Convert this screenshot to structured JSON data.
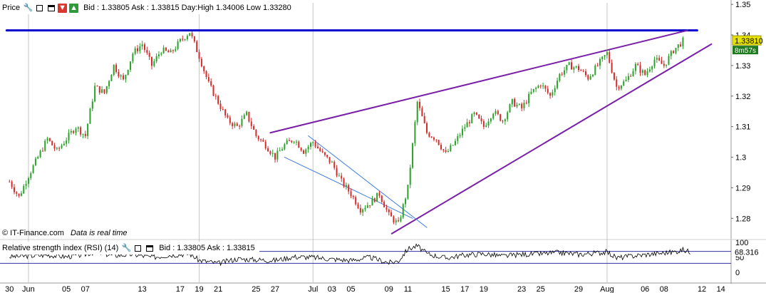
{
  "price_toolbar": {
    "label": "Price",
    "info": "Bid : 1.33805 Ask : 1.33815 Day:High 1.34006 Low 1.33280",
    "icons": [
      "wrench-icon",
      "window-icon",
      "minimize-icon",
      "download-icon",
      "upload-icon"
    ]
  },
  "rsi_toolbar": {
    "label": "Relative strength index (RSI) (14)",
    "info": "Bid : 1.33805 Ask : 1.33815",
    "icons": [
      "wrench-icon",
      "window-icon",
      "minimize-icon"
    ]
  },
  "footer": {
    "copyright": "© IT-Finance.com",
    "realtime_note": "Data is real time"
  },
  "colors": {
    "up_candle": "#2aa22a",
    "down_candle": "#d62a2a",
    "resistance_line": "#0000cc",
    "wedge_lines": "#7a1fa8",
    "channel_lines": "#3a7be0",
    "price_label_bg": "#e8e400",
    "countdown_bg": "#1e7a1e",
    "grid": "#9a9a9a"
  },
  "chart_data": [
    {
      "type": "candlestick",
      "instrument_price_now": 1.3381,
      "price_label": "1.33810",
      "countdown_label": "8m57s",
      "ylim": [
        1.274,
        1.3505
      ],
      "y_ticks": [
        1.28,
        1.29,
        1.3,
        1.31,
        1.32,
        1.33,
        1.34,
        1.35
      ],
      "y_tick_labels": [
        "1.28",
        "1.29",
        "1.3",
        "1.31",
        "1.32",
        "1.33",
        "1.34",
        "1.35"
      ],
      "x_ticks": [
        "30",
        "Jun",
        "05",
        "07",
        "13",
        "17",
        "19",
        "21",
        "25",
        "27",
        "Jul",
        "03",
        "05",
        "09",
        "11",
        "15",
        "17",
        "19",
        "23",
        "25",
        "29",
        "Aug",
        "06",
        "08",
        "12",
        "14"
      ],
      "x_tick_day_index": [
        0,
        2,
        6,
        8,
        14,
        18,
        20,
        22,
        26,
        28,
        32,
        34,
        36,
        40,
        42,
        46,
        48,
        50,
        54,
        56,
        60,
        63,
        67,
        69,
        73,
        75
      ],
      "period_start_day": 0,
      "x_range_days": [
        -1,
        76
      ],
      "vertical_gridlines_at_day": [
        2,
        20,
        32,
        63
      ],
      "price_path": [
        [
          0,
          1.292
        ],
        [
          1,
          1.287
        ],
        [
          2,
          1.294
        ],
        [
          3,
          1.3
        ],
        [
          4,
          1.306
        ],
        [
          5,
          1.302
        ],
        [
          6,
          1.306
        ],
        [
          7,
          1.31
        ],
        [
          8,
          1.307
        ],
        [
          9,
          1.323
        ],
        [
          10,
          1.321
        ],
        [
          11,
          1.33
        ],
        [
          12,
          1.325
        ],
        [
          13,
          1.334
        ],
        [
          14,
          1.337
        ],
        [
          15,
          1.33
        ],
        [
          16,
          1.335
        ],
        [
          17,
          1.334
        ],
        [
          18,
          1.338
        ],
        [
          19,
          1.341
        ],
        [
          20,
          1.333
        ],
        [
          21,
          1.324
        ],
        [
          22,
          1.318
        ],
        [
          23,
          1.312
        ],
        [
          24,
          1.31
        ],
        [
          25,
          1.314
        ],
        [
          26,
          1.307
        ],
        [
          27,
          1.304
        ],
        [
          28,
          1.3
        ],
        [
          29,
          1.304
        ],
        [
          30,
          1.306
        ],
        [
          31,
          1.302
        ],
        [
          32,
          1.305
        ],
        [
          33,
          1.301
        ],
        [
          34,
          1.298
        ],
        [
          35,
          1.292
        ],
        [
          36,
          1.288
        ],
        [
          37,
          1.283
        ],
        [
          38,
          1.285
        ],
        [
          39,
          1.288
        ],
        [
          40,
          1.281
        ],
        [
          41,
          1.278
        ],
        [
          42,
          1.29
        ],
        [
          43,
          1.318
        ],
        [
          44,
          1.308
        ],
        [
          45,
          1.306
        ],
        [
          46,
          1.301
        ],
        [
          47,
          1.305
        ],
        [
          48,
          1.31
        ],
        [
          49,
          1.314
        ],
        [
          50,
          1.31
        ],
        [
          51,
          1.315
        ],
        [
          52,
          1.312
        ],
        [
          53,
          1.318
        ],
        [
          54,
          1.316
        ],
        [
          55,
          1.321
        ],
        [
          56,
          1.324
        ],
        [
          57,
          1.32
        ],
        [
          58,
          1.327
        ],
        [
          59,
          1.33
        ],
        [
          60,
          1.329
        ],
        [
          61,
          1.326
        ],
        [
          62,
          1.33
        ],
        [
          63,
          1.334
        ],
        [
          64,
          1.323
        ],
        [
          65,
          1.325
        ],
        [
          66,
          1.33
        ],
        [
          67,
          1.327
        ],
        [
          68,
          1.332
        ],
        [
          69,
          1.33
        ],
        [
          70,
          1.335
        ],
        [
          71,
          1.338
        ]
      ],
      "trendlines": [
        {
          "name": "resistance",
          "color": "#0000cc",
          "width": 3,
          "points": [
            [
              -0.3,
              1.3415
            ],
            [
              72.5,
              1.3415
            ]
          ]
        },
        {
          "name": "wedge-upper",
          "color": "#7a1fa8",
          "width": 2,
          "points": [
            [
              27.5,
              1.308
            ],
            [
              71.5,
              1.3415
            ]
          ]
        },
        {
          "name": "wedge-lower",
          "color": "#7a1fa8",
          "width": 2,
          "points": [
            [
              40.3,
              1.275
            ],
            [
              74.0,
              1.337
            ]
          ]
        },
        {
          "name": "channel-upper",
          "color": "#3a7be0",
          "width": 1,
          "points": [
            [
              31.5,
              1.307
            ],
            [
              44.0,
              1.277
            ]
          ]
        },
        {
          "name": "channel-lower",
          "color": "#3a7be0",
          "width": 1,
          "points": [
            [
              29.0,
              1.3
            ],
            [
              42.5,
              1.28
            ]
          ]
        }
      ]
    },
    {
      "type": "line",
      "name": "Relative strength index (RSI) (14)",
      "value_label": "68.316",
      "ylim": [
        0,
        100
      ],
      "y_ticks": [
        0,
        50,
        100
      ],
      "y_tick_labels": [
        "0",
        "50",
        "100"
      ],
      "reference_lines": [
        30,
        70
      ],
      "rsi_path": [
        [
          0,
          52
        ],
        [
          2,
          55
        ],
        [
          4,
          58
        ],
        [
          6,
          52
        ],
        [
          8,
          60
        ],
        [
          9,
          68
        ],
        [
          11,
          56
        ],
        [
          13,
          60
        ],
        [
          15,
          50
        ],
        [
          17,
          58
        ],
        [
          19,
          62
        ],
        [
          20,
          40
        ],
        [
          22,
          30
        ],
        [
          24,
          45
        ],
        [
          26,
          42
        ],
        [
          28,
          40
        ],
        [
          30,
          52
        ],
        [
          32,
          50
        ],
        [
          34,
          44
        ],
        [
          36,
          40
        ],
        [
          38,
          50
        ],
        [
          40,
          32
        ],
        [
          41,
          38
        ],
        [
          42,
          78
        ],
        [
          43,
          88
        ],
        [
          44,
          62
        ],
        [
          46,
          48
        ],
        [
          48,
          58
        ],
        [
          50,
          62
        ],
        [
          52,
          54
        ],
        [
          54,
          60
        ],
        [
          56,
          62
        ],
        [
          58,
          66
        ],
        [
          60,
          60
        ],
        [
          62,
          65
        ],
        [
          63,
          68
        ],
        [
          64,
          48
        ],
        [
          66,
          56
        ],
        [
          68,
          62
        ],
        [
          70,
          68
        ],
        [
          71,
          75
        ],
        [
          71.8,
          68
        ]
      ]
    }
  ]
}
